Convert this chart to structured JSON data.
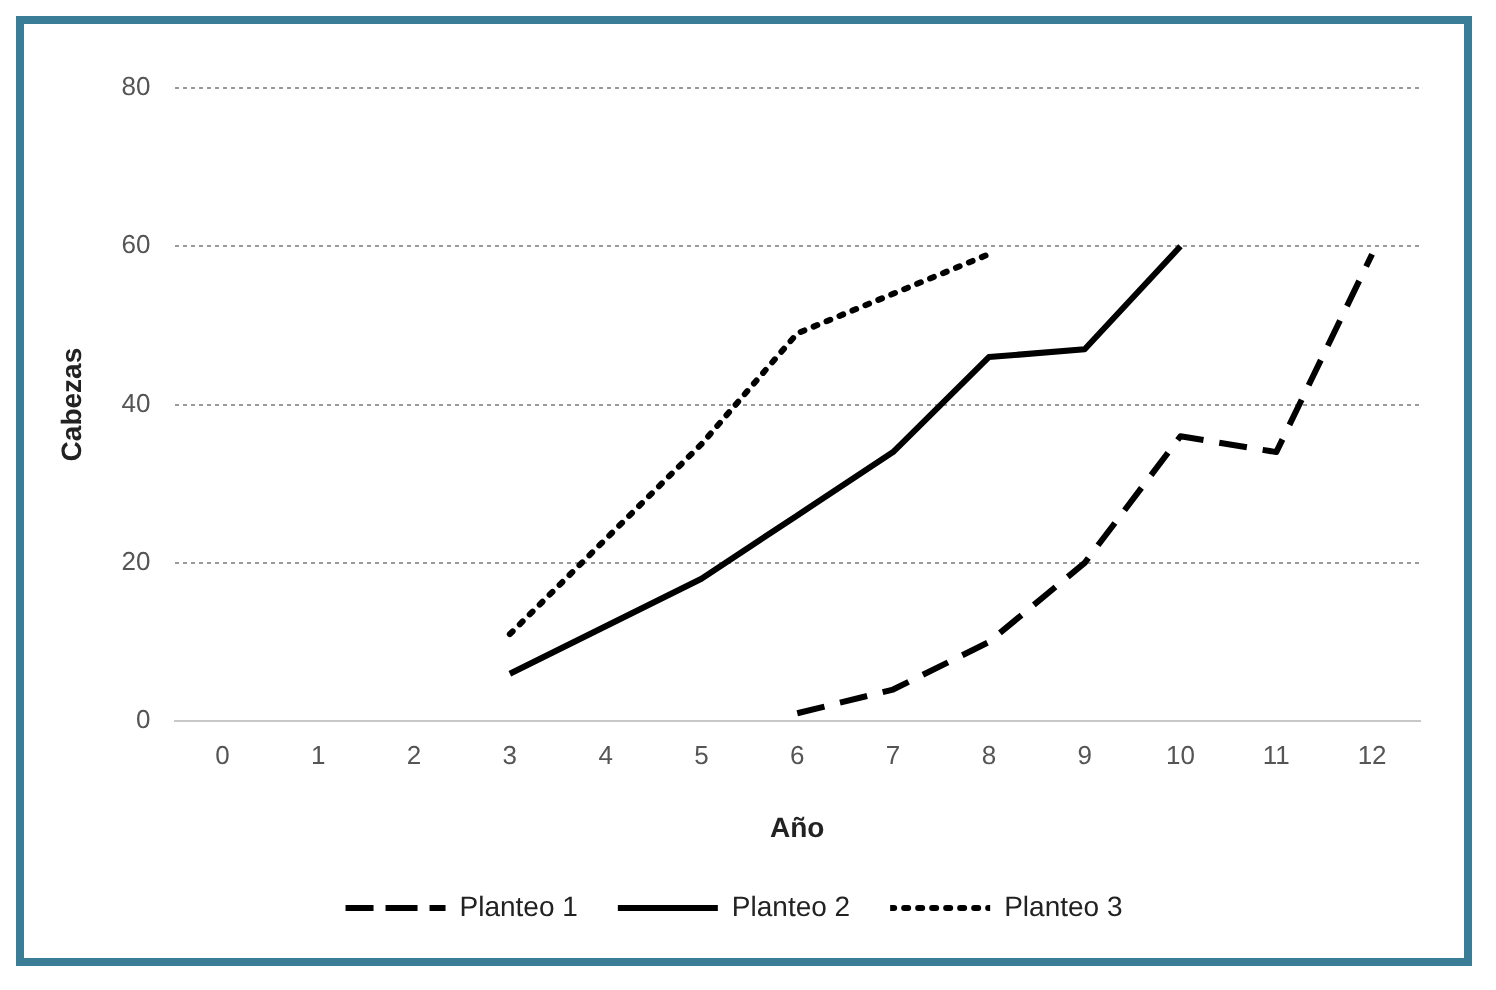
{
  "chart_data": {
    "type": "line",
    "xlabel": "Año",
    "ylabel": "Cabezas",
    "series": [
      {
        "name": "Planteo 1",
        "color": "#000000",
        "line_style": "dashed",
        "x": [
          6,
          7,
          8,
          9,
          10,
          11,
          12
        ],
        "values": [
          1,
          4,
          10,
          20,
          36,
          34,
          59
        ]
      },
      {
        "name": "Planteo 2",
        "color": "#000000",
        "line_style": "solid",
        "x": [
          3,
          4,
          5,
          6,
          7,
          8,
          9,
          10
        ],
        "values": [
          6,
          12,
          18,
          26,
          34,
          46,
          47,
          60
        ]
      },
      {
        "name": "Planteo 3",
        "color": "#000000",
        "line_style": "dotted",
        "x": [
          3,
          4,
          5,
          6,
          7,
          8
        ],
        "values": [
          11,
          23,
          35,
          49,
          54,
          59
        ]
      }
    ],
    "xlim": [
      -0.5,
      12.5
    ],
    "xticks": [
      0,
      1,
      2,
      3,
      4,
      5,
      6,
      7,
      8,
      9,
      10,
      11,
      12
    ],
    "ylim": [
      0,
      80
    ],
    "yticks": [
      0,
      20,
      40,
      60,
      80
    ],
    "grid": "y",
    "legend": "bottom",
    "marker": "none"
  }
}
